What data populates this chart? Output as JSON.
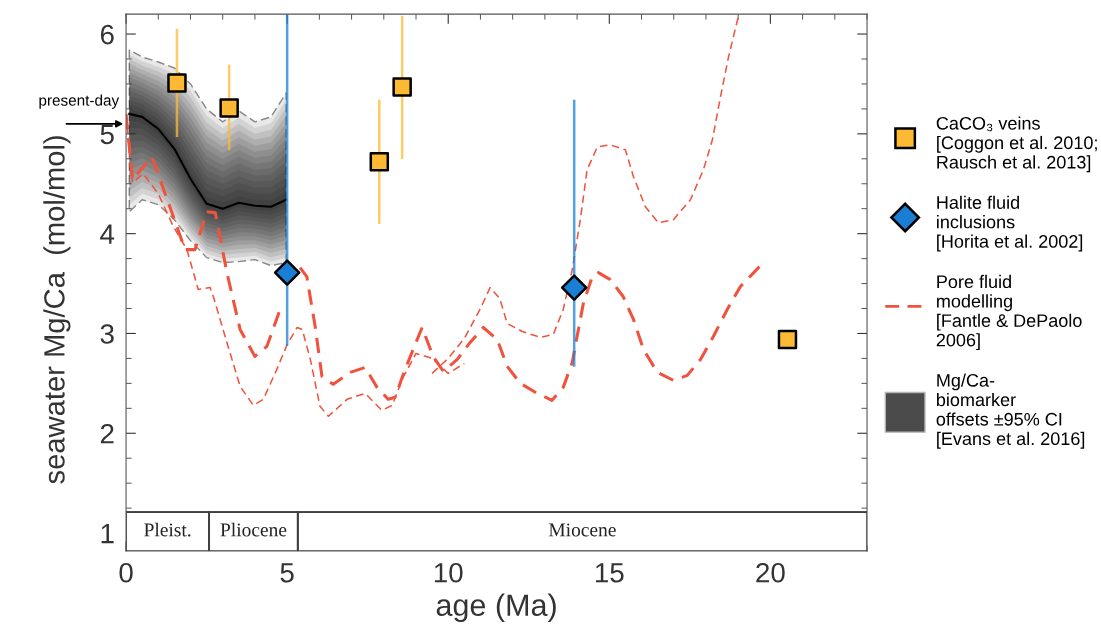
{
  "chart_data": {
    "type": "line",
    "xlabel": "age (Ma)",
    "ylabel": "seawater Mg/Ca  (mol/mol)",
    "xlim": [
      0,
      23
    ],
    "ylim": [
      0.82,
      6.2
    ],
    "xticks": [
      0,
      5,
      10,
      15,
      20
    ],
    "yticks": [
      1,
      2,
      3,
      4,
      5,
      6
    ],
    "legend": "right",
    "grid": false,
    "annotations": [
      {
        "text": "present-day",
        "x": 0,
        "y": 5.1
      }
    ],
    "ref_lines": [
      {
        "axis": "y",
        "value": 1.21,
        "color": "#404040"
      }
    ],
    "bands": [
      {
        "axis": "x",
        "from": 0,
        "to": 2.58,
        "label": "Pleist."
      },
      {
        "axis": "x",
        "from": 2.58,
        "to": 5.33,
        "label": "Pliocene"
      },
      {
        "axis": "x",
        "from": 5.33,
        "to": 23,
        "label": "Miocene"
      }
    ],
    "series": [
      {
        "type": "area",
        "name": "Mg/Ca-\nbiomarker\noffsets ±95% CI\n[Evans et al. 2016]",
        "color": "#000000",
        "x": [
          0.1,
          0.5,
          1.0,
          1.5,
          2.0,
          2.5,
          3.0,
          3.5,
          4.0,
          4.5,
          4.97
        ],
        "values": [
          5.2,
          5.17,
          5.05,
          4.85,
          4.55,
          4.3,
          4.25,
          4.31,
          4.28,
          4.27,
          4.34
        ],
        "lower": [
          4.22,
          4.34,
          4.29,
          4.14,
          3.93,
          3.76,
          3.71,
          3.72,
          3.74,
          3.68,
          3.71
        ],
        "upper": [
          5.84,
          5.77,
          5.72,
          5.66,
          5.5,
          5.25,
          5.12,
          5.23,
          5.12,
          5.17,
          5.41
        ]
      },
      {
        "name": "Pore fluid\nmodelling\n[Fantle & DePaolo\n2006]",
        "color": "#f0533d",
        "line_style": "dashed",
        "x": [
          0,
          0.2,
          0.8,
          1.47,
          1.83,
          2.14,
          2.5,
          2.77,
          3.13,
          3.54,
          4.0,
          4.37,
          4.78,
          5.04,
          5.4,
          5.61,
          5.87,
          6.08,
          6.43,
          6.96,
          7.42,
          7.79,
          8.14,
          8.35,
          8.66,
          9.19,
          9.53,
          9.85,
          10.28,
          10.68,
          11.09,
          11.52,
          11.83,
          12.24,
          12.76,
          13.22,
          13.57,
          13.85,
          14.0,
          14.2,
          14.47,
          14.66,
          15.03,
          15.43,
          15.75,
          16.06,
          16.49,
          16.99,
          17.42,
          17.83,
          18.23,
          18.66,
          19.07,
          19.66
        ],
        "values": [
          5.2,
          4.54,
          4.77,
          4.17,
          3.84,
          3.84,
          4.22,
          4.21,
          3.61,
          3.04,
          2.77,
          2.87,
          3.24,
          null,
          3.66,
          3.57,
          3.07,
          2.57,
          2.49,
          2.61,
          2.66,
          2.46,
          2.34,
          2.36,
          2.64,
          3.06,
          2.77,
          2.62,
          2.74,
          2.91,
          3.06,
          2.94,
          2.67,
          2.5,
          2.4,
          2.33,
          2.46,
          2.71,
          2.97,
          3.31,
          3.57,
          3.61,
          3.54,
          3.37,
          3.14,
          2.84,
          2.61,
          2.53,
          2.58,
          2.74,
          2.97,
          3.24,
          3.47,
          3.67
        ]
      },
      {
        "color": "#f0533d",
        "line_style": "dashed",
        "x": [
          0,
          0.2,
          0.53,
          1.0,
          1.47,
          1.89,
          2.24,
          2.61,
          2.71,
          3.13,
          3.54,
          3.95,
          4.26,
          4.68,
          5.0,
          5.31,
          5.47,
          5.72,
          6.02,
          6.28,
          6.86,
          7.42,
          7.94,
          8.26,
          8.6,
          9.0,
          9.5,
          10.0,
          10.5
        ],
        "values": [
          5.2,
          4.51,
          4.6,
          4.4,
          4.07,
          3.84,
          3.44,
          3.46,
          3.37,
          2.91,
          2.47,
          2.28,
          2.34,
          2.64,
          2.89,
          3.06,
          3.04,
          2.74,
          2.27,
          2.17,
          2.34,
          2.4,
          2.23,
          2.28,
          2.56,
          2.8,
          2.75,
          2.6,
          2.7
        ]
      },
      {
        "color": "#f0533d",
        "line_style": "dashed",
        "x": [
          9.5,
          10.0,
          10.5,
          11.0,
          11.3,
          11.6,
          11.83,
          12.3,
          12.86,
          13.26,
          13.57,
          13.85,
          14.1,
          14.31,
          14.63,
          15.03,
          15.5,
          15.75,
          16.12,
          16.52,
          16.99,
          17.52,
          17.92,
          18.2,
          18.45,
          18.7,
          19.0
        ],
        "values": [
          2.6,
          2.75,
          2.95,
          3.25,
          3.46,
          3.35,
          3.1,
          3.02,
          2.96,
          2.99,
          3.24,
          3.64,
          4.14,
          4.64,
          4.87,
          4.89,
          4.84,
          4.57,
          4.27,
          4.11,
          4.14,
          4.34,
          4.64,
          4.94,
          5.37,
          5.77,
          6.17
        ]
      },
      {
        "type": "scatter",
        "name": "CaCO₃ veins\n[Coggon et al. 2010;\nRausch et al. 2013]",
        "color": "#fdb933",
        "marker": "square",
        "x": [
          1.58,
          3.2,
          7.86,
          8.57,
          20.53
        ],
        "values": [
          5.51,
          5.26,
          4.72,
          5.47,
          2.94
        ],
        "errors": [
          [
            4.98,
            6.04
          ],
          [
            4.85,
            5.68
          ],
          [
            4.11,
            5.33
          ],
          [
            4.76,
            6.17
          ],
          null
        ]
      },
      {
        "type": "scatter",
        "name": "Halite fluid\ninclusions\n[Horita et al. 2002]",
        "color": "#1a7fd4",
        "marker": "diamond",
        "x": [
          5.0,
          13.91
        ],
        "values": [
          3.61,
          3.46
        ],
        "errors": [
          [
            2.89,
            6.2
          ],
          [
            2.68,
            5.33
          ]
        ]
      }
    ]
  }
}
